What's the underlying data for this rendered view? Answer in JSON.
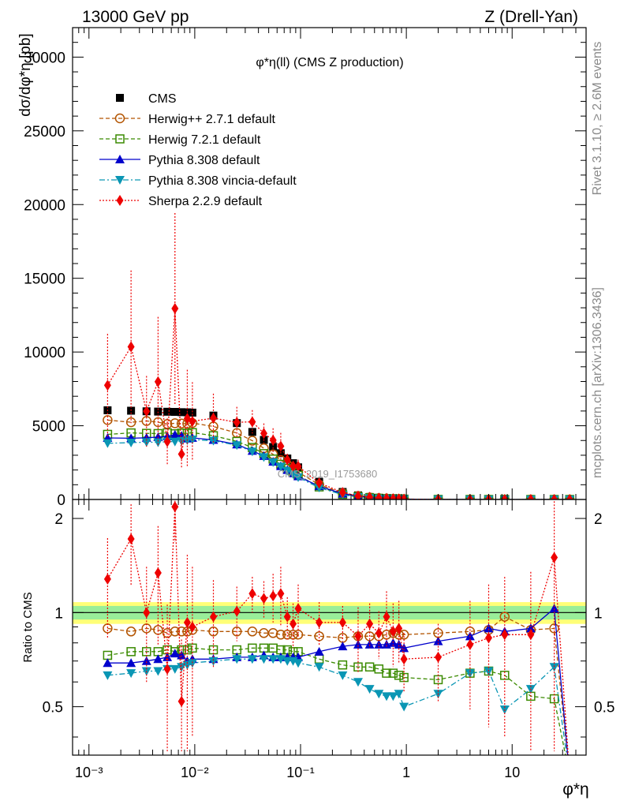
{
  "header": {
    "left": "13000 GeV pp",
    "right": "Z (Drell-Yan)"
  },
  "side_labels": {
    "rivet": "Rivet 3.1.10, ≥ 2.6M events",
    "mcplots": "mcplots.cern.ch [arXiv:1306.3436]"
  },
  "chart_data": {
    "type": "line",
    "title": "φ*η(ll) (CMS Z production)",
    "analysis_tag": "CMS_2019_I1753680",
    "xscale": "log",
    "xlim": [
      0.0007,
      50
    ],
    "x_ticks": [
      "10⁻³",
      "10⁻²",
      "10⁻¹",
      "1",
      "10"
    ],
    "xlabel": "φ*η",
    "legend_position": "top-left",
    "main_panel": {
      "ylabel": "dσ/dφ*η [pb]",
      "ylim": [
        0,
        32000
      ],
      "y_ticks": [
        "0",
        "5000",
        "10000",
        "15000",
        "20000",
        "25000",
        "30000"
      ]
    },
    "ratio_panel": {
      "ylabel": "Ratio to CMS",
      "ylim": [
        0.35,
        2.3
      ],
      "y_ticks": [
        "0.5",
        "1",
        "2"
      ],
      "band_inner": [
        0.95,
        1.05
      ],
      "band_outer": [
        0.92,
        1.08
      ]
    },
    "x": [
      0.0015,
      0.0025,
      0.0035,
      0.0045,
      0.0055,
      0.0065,
      0.0075,
      0.0085,
      0.0095,
      0.015,
      0.025,
      0.035,
      0.045,
      0.055,
      0.065,
      0.075,
      0.085,
      0.095,
      0.15,
      0.25,
      0.35,
      0.45,
      0.55,
      0.65,
      0.75,
      0.85,
      0.95,
      2.0,
      4.0,
      6.0,
      8.5,
      15.0,
      25.0,
      35.0
    ],
    "series": [
      {
        "name": "CMS",
        "color": "#000000",
        "marker": "square",
        "dash": "none",
        "values": [
          6050,
          6020,
          5980,
          5960,
          5950,
          5940,
          5920,
          5910,
          5890,
          5690,
          5180,
          4580,
          4040,
          3560,
          3140,
          2780,
          2460,
          2180,
          1200,
          510,
          280,
          170,
          115,
          80,
          58,
          44,
          34,
          8,
          2.5,
          1.2,
          0.7,
          0.3,
          0.15,
          0.05
        ]
      },
      {
        "name": "Herwig++ 2.7.1 default",
        "color": "#b35400",
        "marker": "circle-open",
        "dash": "5,3",
        "ratio": [
          0.89,
          0.87,
          0.89,
          0.88,
          0.86,
          0.87,
          0.87,
          0.87,
          0.88,
          0.87,
          0.87,
          0.87,
          0.86,
          0.86,
          0.85,
          0.85,
          0.85,
          0.85,
          0.84,
          0.83,
          0.84,
          0.84,
          0.84,
          0.85,
          0.86,
          0.85,
          0.85,
          0.86,
          0.87,
          0.88,
          0.97,
          0.88,
          0.89,
          0.3
        ]
      },
      {
        "name": "Herwig 7.2.1 default",
        "color": "#3a8a00",
        "marker": "square-open",
        "dash": "5,3",
        "ratio": [
          0.73,
          0.75,
          0.75,
          0.75,
          0.76,
          0.75,
          0.76,
          0.76,
          0.77,
          0.76,
          0.76,
          0.77,
          0.77,
          0.77,
          0.76,
          0.76,
          0.75,
          0.75,
          0.71,
          0.68,
          0.67,
          0.67,
          0.66,
          0.64,
          0.64,
          0.63,
          0.62,
          0.61,
          0.64,
          0.65,
          0.63,
          0.54,
          0.53,
          0.3
        ]
      },
      {
        "name": "Pythia 8.308 default",
        "color": "#0000cc",
        "marker": "triangle-up",
        "dash": "none",
        "ratio": [
          0.69,
          0.69,
          0.7,
          0.71,
          0.72,
          0.74,
          0.73,
          0.7,
          0.71,
          0.71,
          0.72,
          0.72,
          0.73,
          0.72,
          0.72,
          0.72,
          0.72,
          0.72,
          0.75,
          0.78,
          0.79,
          0.79,
          0.79,
          0.79,
          0.8,
          0.79,
          0.77,
          0.81,
          0.84,
          0.89,
          0.87,
          0.89,
          1.03,
          0.3
        ]
      },
      {
        "name": "Pythia 8.308 vincia-default",
        "color": "#0a96b4",
        "marker": "triangle-down",
        "dash": "7,3,2,3",
        "ratio": [
          0.63,
          0.64,
          0.65,
          0.65,
          0.66,
          0.66,
          0.67,
          0.68,
          0.69,
          0.7,
          0.71,
          0.71,
          0.71,
          0.71,
          0.71,
          0.7,
          0.7,
          0.69,
          0.67,
          0.63,
          0.6,
          0.57,
          0.55,
          0.54,
          0.54,
          0.55,
          0.5,
          0.55,
          0.64,
          0.65,
          0.49,
          0.57,
          0.67,
          0.3
        ]
      },
      {
        "name": "Sherpa 2.2.9 default",
        "color": "#ee0000",
        "marker": "diamond",
        "dash": "2,2",
        "ratio": [
          1.28,
          1.72,
          1.0,
          1.34,
          0.66,
          2.18,
          0.52,
          0.93,
          0.9,
          0.97,
          1.01,
          1.15,
          1.11,
          1.13,
          1.15,
          0.97,
          0.92,
          1.03,
          0.93,
          0.93,
          0.84,
          0.92,
          0.86,
          0.97,
          0.87,
          0.89,
          0.71,
          0.72,
          0.79,
          0.83,
          0.85,
          0.85,
          1.5,
          0.3
        ],
        "ratio_err": [
          0.45,
          0.5,
          0.4,
          0.55,
          0.4,
          0.5,
          0.3,
          0.6,
          0.5,
          0.3,
          0.2,
          0.15,
          0.15,
          0.2,
          0.25,
          0.15,
          0.15,
          0.2,
          0.15,
          0.12,
          0.2,
          0.15,
          0.15,
          0.2,
          0.2,
          0.2,
          0.15,
          0.2,
          0.3,
          0.4,
          0.45,
          0.5,
          1.5,
          0.0
        ]
      }
    ]
  }
}
